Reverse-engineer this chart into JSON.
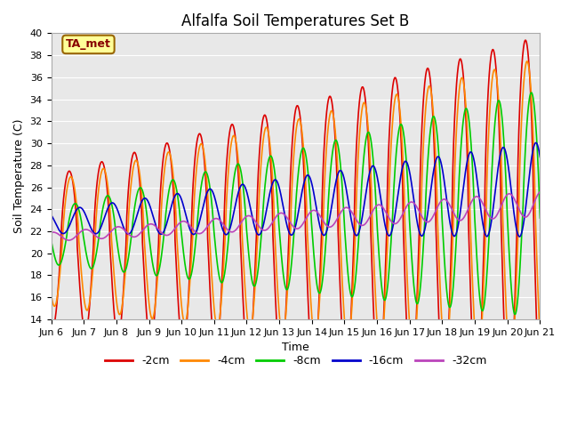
{
  "title": "Alfalfa Soil Temperatures Set B",
  "xlabel": "Time",
  "ylabel": "Soil Temperature (C)",
  "ylim": [
    14,
    40
  ],
  "xlim": [
    0,
    15
  ],
  "xtick_labels": [
    "Jun 6",
    "Jun 7",
    "Jun 8",
    "Jun 9",
    "Jun 10",
    "Jun 11",
    "Jun 12",
    "Jun 13",
    "Jun 14",
    "Jun 15",
    "Jun 16",
    "Jun 17",
    "Jun 18",
    "Jun 19",
    "Jun 20",
    "Jun 21"
  ],
  "ytick_values": [
    14,
    16,
    18,
    20,
    22,
    24,
    26,
    28,
    30,
    32,
    34,
    36,
    38,
    40
  ],
  "line_colors": [
    "#dd0000",
    "#ff8800",
    "#00cc00",
    "#0000cc",
    "#bb44bb"
  ],
  "line_labels": [
    "-2cm",
    "-4cm",
    "-8cm",
    "-16cm",
    "-32cm"
  ],
  "fig_bg_color": "#ffffff",
  "plot_bg_color": "#e8e8e8",
  "annotation_text": "TA_met",
  "annotation_box_facecolor": "#ffff99",
  "annotation_text_color": "#880000",
  "annotation_edge_color": "#996600",
  "title_fontsize": 12,
  "axis_fontsize": 9,
  "tick_fontsize": 8,
  "legend_fontsize": 9,
  "grid_color": "#ffffff",
  "linewidth": 1.2
}
